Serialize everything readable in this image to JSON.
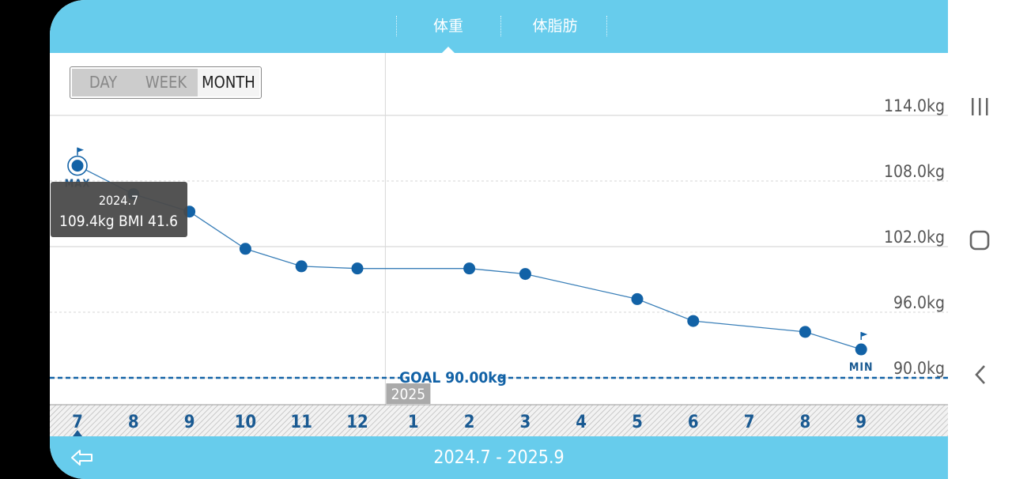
{
  "tabs": {
    "weight": "体重",
    "body_fat": "体脂肪"
  },
  "period": {
    "day": "DAY",
    "week": "WEEK",
    "month": "MONTH",
    "selected": "MONTH"
  },
  "range_label": "2024.7 - 2025.9",
  "year_marker": "2025",
  "goal_label": "GOAL 90.00kg",
  "max_label": "MAX",
  "min_label": "MIN",
  "tooltip": {
    "date": "2024.7",
    "values": "109.4kg  BMI 41.6"
  },
  "colors": {
    "accent": "#67ccec",
    "point": "#1262a6",
    "goal": "#1262a6"
  },
  "icons": {
    "back": "arrow-left-outline-icon",
    "flag": "flag-icon",
    "recents": "recents-icon",
    "home": "home-icon",
    "nav_back": "chevron-left-icon"
  },
  "chart_data": {
    "type": "line",
    "categories": [
      "7",
      "8",
      "9",
      "10",
      "11",
      "12",
      "1",
      "2",
      "3",
      "4",
      "5",
      "6",
      "7",
      "8",
      "9"
    ],
    "series": [
      {
        "values": [
          109.4,
          106.8,
          105.2,
          101.8,
          100.2,
          100.0,
          null,
          100.0,
          99.5,
          null,
          97.2,
          95.2,
          null,
          94.2,
          92.6
        ]
      }
    ],
    "yticks": [
      "114.0kg",
      "108.0kg",
      "102.0kg",
      "96.0kg",
      "90.0kg"
    ],
    "ylim": [
      90,
      114
    ],
    "goal": 90.0,
    "max_index": 0,
    "min_index": 14,
    "grid": true
  }
}
